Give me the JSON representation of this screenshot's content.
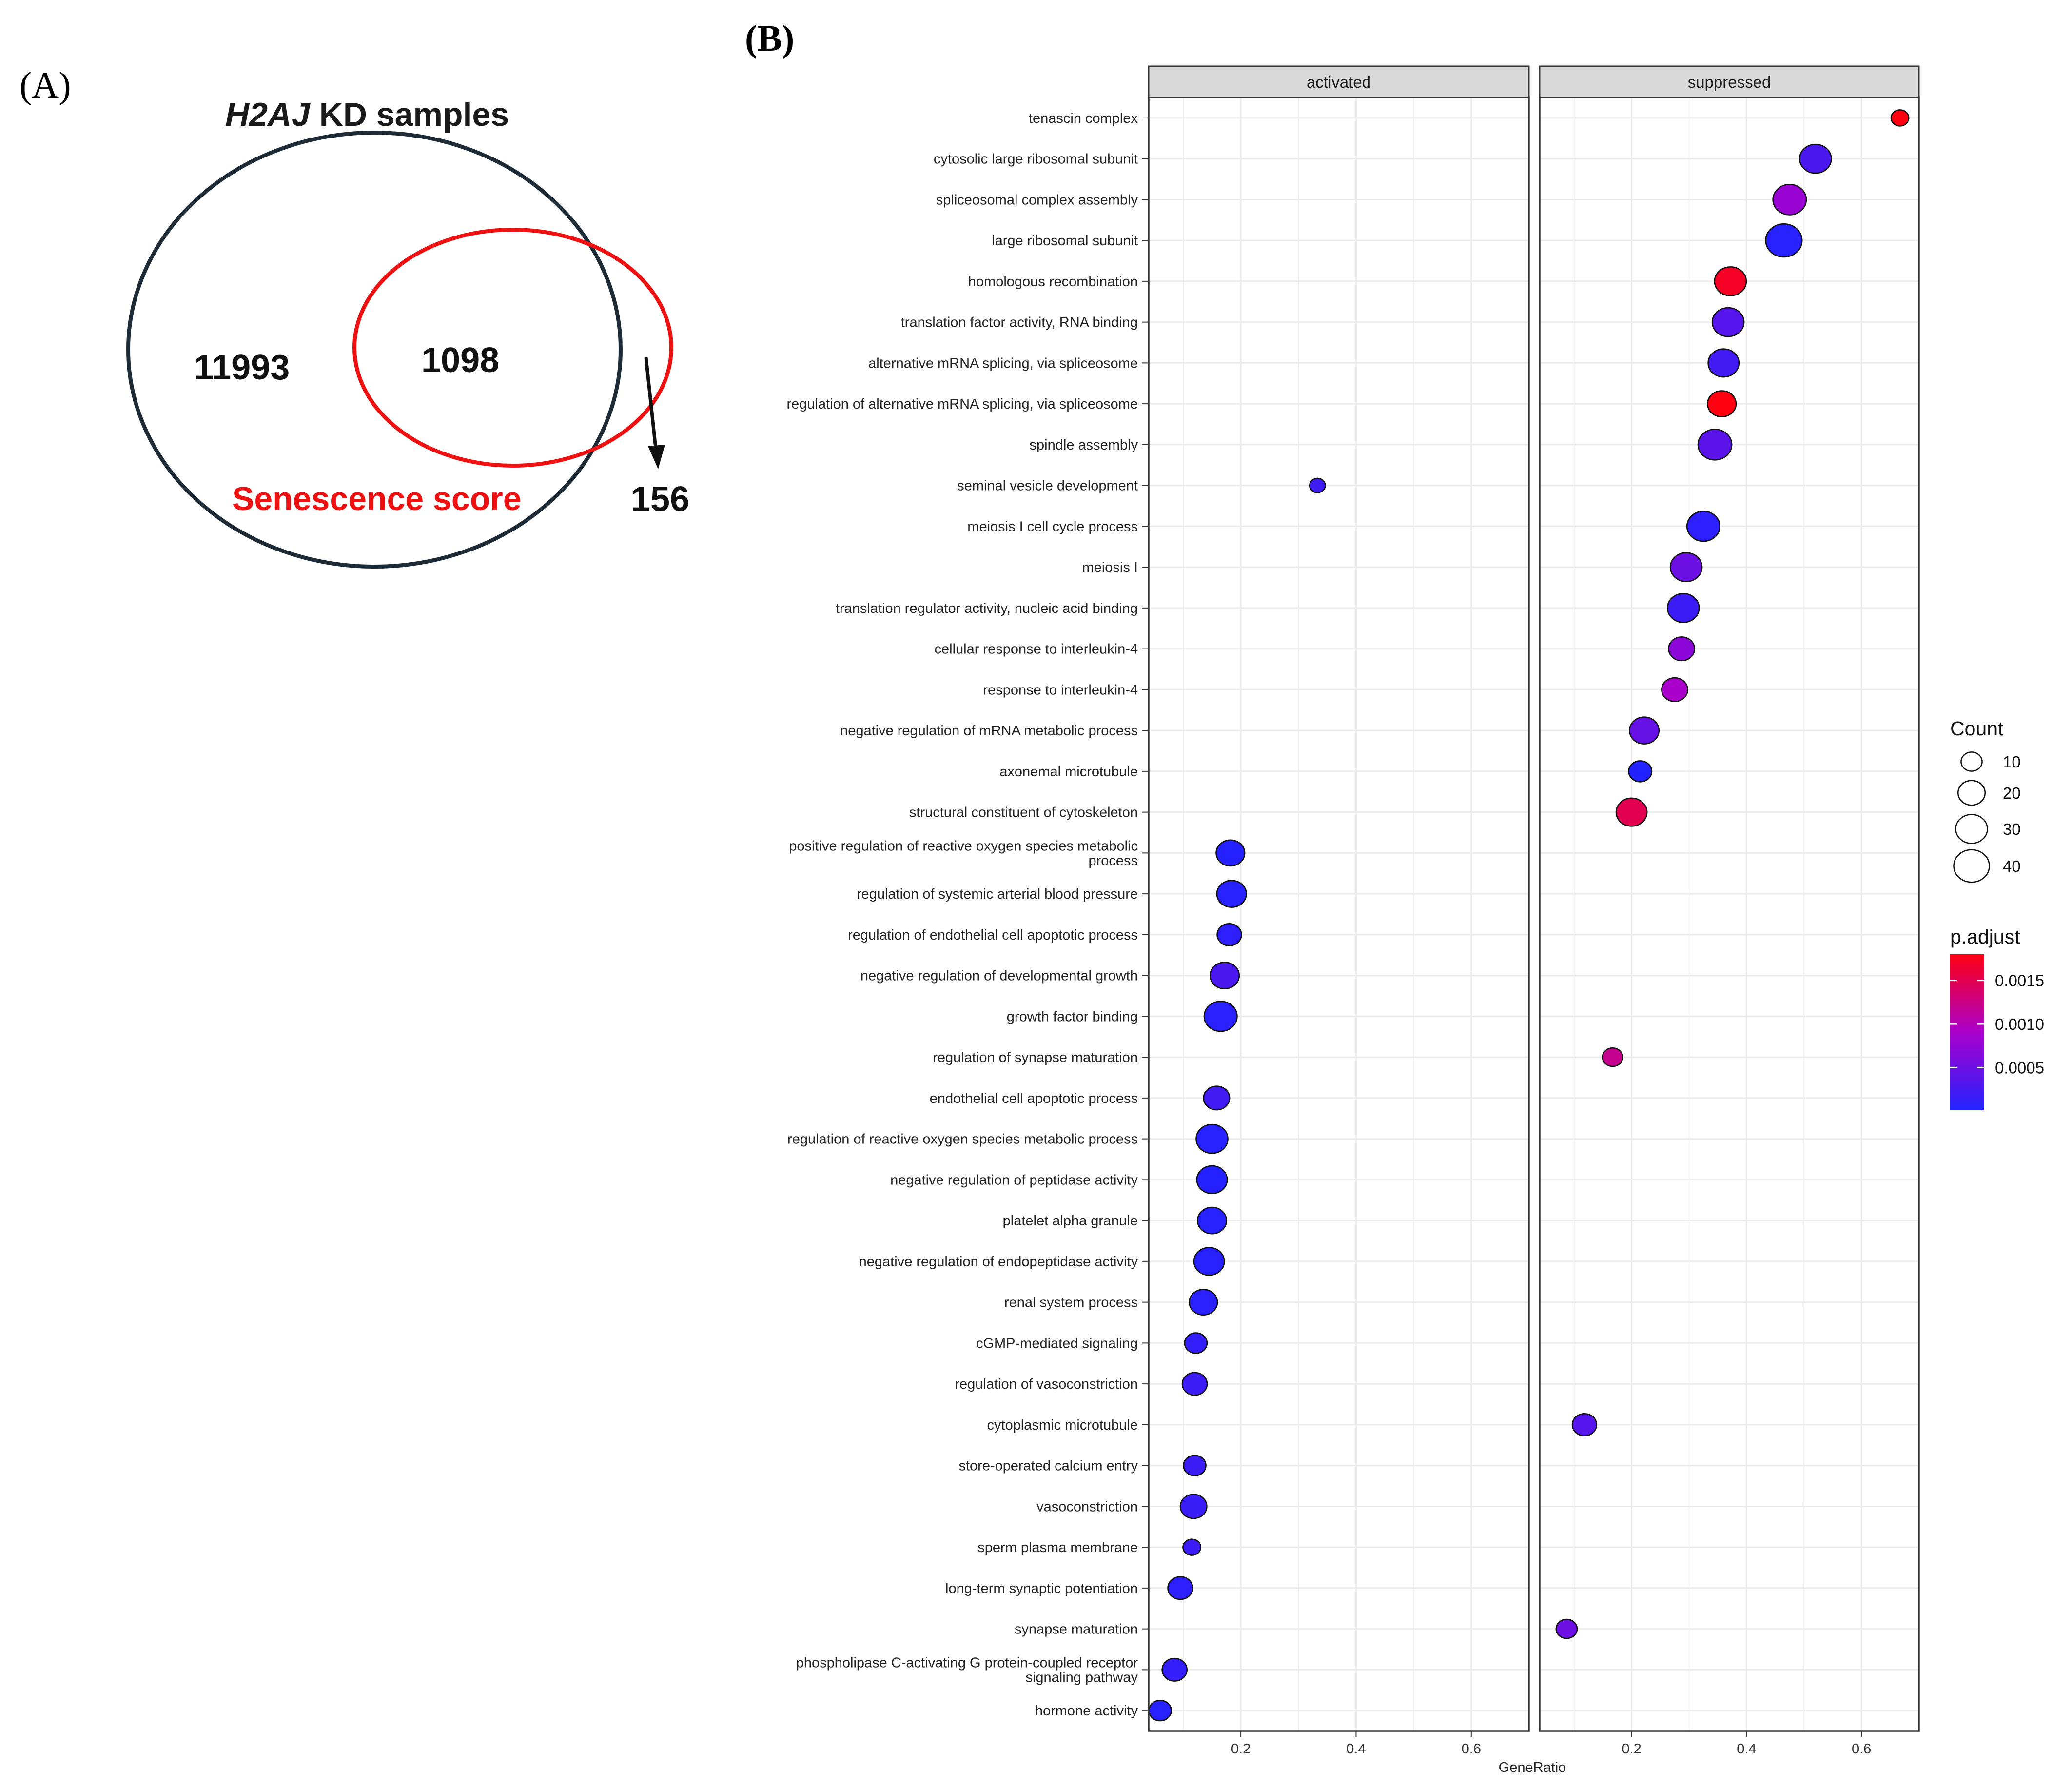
{
  "panel_a": {
    "letter": "(A)",
    "title_italic": "H2AJ",
    "title_rest": " KD samples",
    "left_only_count": "11993",
    "overlap_count": "1098",
    "senescence_label": "Senescence score",
    "right_only_count": "156",
    "colors": {
      "kd_circle": "#1c2b36",
      "senescence_circle": "#ee1111"
    }
  },
  "panel_b": {
    "letter": "(B)"
  },
  "chart_data": {
    "type": "scatter",
    "subtype": "dotplot",
    "title": "",
    "xlabel": "GeneRatio",
    "ylabel": "",
    "facets": [
      "activated",
      "suppressed"
    ],
    "xlim": [
      0.04,
      0.7
    ],
    "x_ticks": [
      0.2,
      0.4,
      0.6
    ],
    "x_tick_labels": [
      "0.2",
      "0.4",
      "0.6"
    ],
    "grid": true,
    "terms": [
      "tenascin complex",
      "cytosolic large ribosomal subunit",
      "spliceosomal complex assembly",
      "large ribosomal subunit",
      "homologous recombination",
      "translation factor activity, RNA binding",
      "alternative mRNA splicing, via spliceosome",
      "regulation of alternative mRNA splicing, via spliceosome",
      "spindle assembly",
      "seminal vesicle development",
      "meiosis I cell cycle process",
      "meiosis I",
      "translation regulator activity, nucleic acid binding",
      "cellular response to interleukin-4",
      "response to interleukin-4",
      "negative regulation of mRNA metabolic process",
      "axonemal microtubule",
      "structural constituent of cytoskeleton",
      [
        "positive regulation of reactive oxygen species metabolic",
        "process"
      ],
      "regulation of systemic arterial blood pressure",
      "regulation of endothelial cell apoptotic process",
      "negative regulation of developmental growth",
      "growth factor binding",
      "regulation of synapse maturation",
      "endothelial cell apoptotic process",
      "regulation of reactive oxygen species metabolic process",
      "negative regulation of peptidase activity",
      "platelet alpha granule",
      "negative regulation of endopeptidase activity",
      "renal system process",
      "cGMP-mediated signaling",
      "regulation of vasoconstriction",
      "cytoplasmic microtubule",
      "store-operated calcium entry",
      "vasoconstriction",
      "sperm plasma membrane",
      "long-term synaptic potentiation",
      "synapse maturation",
      [
        "phospholipase C-activating G protein-coupled receptor",
        "signaling pathway"
      ],
      "hormone activity"
    ],
    "series": [
      {
        "name": "activated",
        "points": [
          {
            "term": "seminal vesicle development",
            "x": 0.333,
            "count": 4,
            "p_adjust": 0.0002
          },
          {
            "term": "positive regulation of reactive oxygen species metabolic process",
            "x": 0.182,
            "count": 23,
            "p_adjust": 3e-05
          },
          {
            "term": "regulation of systemic arterial blood pressure",
            "x": 0.184,
            "count": 25,
            "p_adjust": 4e-05
          },
          {
            "term": "regulation of endothelial cell apoptotic process",
            "x": 0.18,
            "count": 15,
            "p_adjust": 8e-05
          },
          {
            "term": "negative regulation of developmental growth",
            "x": 0.172,
            "count": 24,
            "p_adjust": 0.00028
          },
          {
            "term": "growth factor binding",
            "x": 0.165,
            "count": 33,
            "p_adjust": 6e-05
          },
          {
            "term": "endothelial cell apoptotic process",
            "x": 0.158,
            "count": 18,
            "p_adjust": 0.00022
          },
          {
            "term": "regulation of reactive oxygen species metabolic process",
            "x": 0.15,
            "count": 30,
            "p_adjust": 4e-05
          },
          {
            "term": "negative regulation of peptidase activity",
            "x": 0.15,
            "count": 27,
            "p_adjust": 3e-05
          },
          {
            "term": "platelet alpha granule",
            "x": 0.15,
            "count": 24,
            "p_adjust": 4e-05
          },
          {
            "term": "negative regulation of endopeptidase activity",
            "x": 0.145,
            "count": 27,
            "p_adjust": 4e-05
          },
          {
            "term": "renal system process",
            "x": 0.135,
            "count": 22,
            "p_adjust": 6e-05
          },
          {
            "term": "cGMP-mediated signaling",
            "x": 0.122,
            "count": 12,
            "p_adjust": 0.00012
          },
          {
            "term": "regulation of vasoconstriction",
            "x": 0.12,
            "count": 16,
            "p_adjust": 0.00018
          },
          {
            "term": "store-operated calcium entry",
            "x": 0.12,
            "count": 12,
            "p_adjust": 0.00018
          },
          {
            "term": "vasoconstriction",
            "x": 0.118,
            "count": 19,
            "p_adjust": 0.00016
          },
          {
            "term": "sperm plasma membrane",
            "x": 0.115,
            "count": 6,
            "p_adjust": 0.00018
          },
          {
            "term": "long-term synaptic potentiation",
            "x": 0.095,
            "count": 16,
            "p_adjust": 8e-05
          },
          {
            "term": "phospholipase C-activating G protein-coupled receptor signaling pathway",
            "x": 0.085,
            "count": 16,
            "p_adjust": 0.00012
          },
          {
            "term": "hormone activity",
            "x": 0.06,
            "count": 12,
            "p_adjust": 4e-05
          }
        ]
      },
      {
        "name": "suppressed",
        "points": [
          {
            "term": "tenascin complex",
            "x": 0.667,
            "count": 6,
            "p_adjust": 0.0018
          },
          {
            "term": "cytosolic large ribosomal subunit",
            "x": 0.52,
            "count": 30,
            "p_adjust": 0.00028
          },
          {
            "term": "spliceosomal complex assembly",
            "x": 0.475,
            "count": 34,
            "p_adjust": 0.0008
          },
          {
            "term": "large ribosomal subunit",
            "x": 0.465,
            "count": 42,
            "p_adjust": 4e-05
          },
          {
            "term": "homologous recombination",
            "x": 0.372,
            "count": 30,
            "p_adjust": 0.0017
          },
          {
            "term": "translation factor activity, RNA binding",
            "x": 0.368,
            "count": 30,
            "p_adjust": 0.00035
          },
          {
            "term": "alternative mRNA splicing, via spliceosome",
            "x": 0.36,
            "count": 28,
            "p_adjust": 0.00022
          },
          {
            "term": "regulation of alternative mRNA splicing, via spliceosome",
            "x": 0.357,
            "count": 23,
            "p_adjust": 0.0018
          },
          {
            "term": "spindle assembly",
            "x": 0.345,
            "count": 35,
            "p_adjust": 0.00038
          },
          {
            "term": "meiosis I cell cycle process",
            "x": 0.325,
            "count": 33,
            "p_adjust": 8e-05
          },
          {
            "term": "meiosis I",
            "x": 0.295,
            "count": 30,
            "p_adjust": 0.0005
          },
          {
            "term": "translation regulator activity, nucleic acid binding",
            "x": 0.29,
            "count": 30,
            "p_adjust": 0.00018
          },
          {
            "term": "cellular response to interleukin-4",
            "x": 0.287,
            "count": 18,
            "p_adjust": 0.0007
          },
          {
            "term": "response to interleukin-4",
            "x": 0.275,
            "count": 18,
            "p_adjust": 0.0009
          },
          {
            "term": "negative regulation of mRNA metabolic process",
            "x": 0.222,
            "count": 25,
            "p_adjust": 0.00045
          },
          {
            "term": "axonemal microtubule",
            "x": 0.215,
            "count": 13,
            "p_adjust": 1e-05
          },
          {
            "term": "structural constituent of cytoskeleton",
            "x": 0.2,
            "count": 28,
            "p_adjust": 0.0015
          },
          {
            "term": "regulation of synapse maturation",
            "x": 0.167,
            "count": 9,
            "p_adjust": 0.0012
          },
          {
            "term": "cytoplasmic microtubule",
            "x": 0.118,
            "count": 15,
            "p_adjust": 0.00035
          },
          {
            "term": "synapse maturation",
            "x": 0.087,
            "count": 10,
            "p_adjust": 0.0005
          }
        ]
      }
    ],
    "legend_count": {
      "title": "Count",
      "labels": [
        "10",
        "20",
        "30",
        "40"
      ],
      "values": [
        10,
        20,
        30,
        40
      ],
      "position": "right"
    },
    "legend_color": {
      "title": "p.adjust",
      "labels": [
        "0.0015",
        "0.0010",
        "0.0005"
      ],
      "values": [
        0.0015,
        0.001,
        0.0005
      ],
      "range": [
        1e-05,
        0.0018
      ],
      "low_color": "#2222ff",
      "mid_color": "#aa00cc",
      "high_color": "#ff0011",
      "position": "right"
    },
    "colors": {
      "strip_fill": "#d9d9d9",
      "panel_border": "#333333",
      "grid": "#ebebeb",
      "point_stroke": "#111111"
    }
  }
}
